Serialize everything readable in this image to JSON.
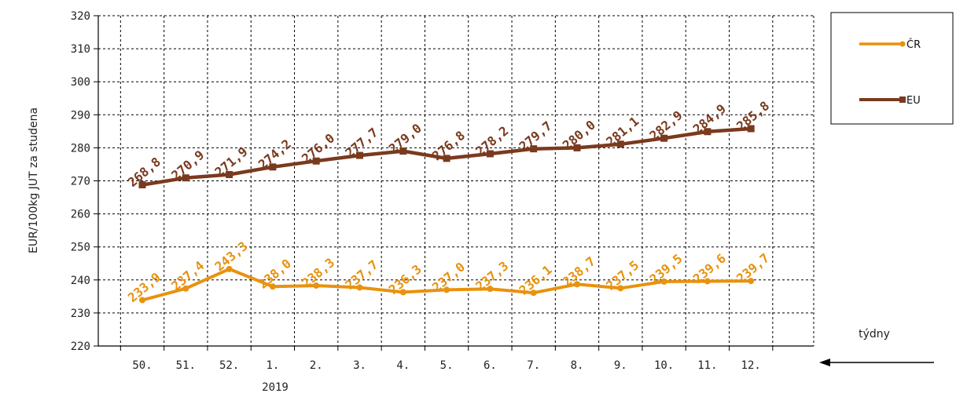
{
  "chart_data": {
    "type": "line",
    "title": "",
    "ylabel": "EUR/100kg  JUT za studena",
    "xlabel": "týdny",
    "year_label": "2019",
    "categories": [
      "50.",
      "51.",
      "52.",
      "1.",
      "2.",
      "3.",
      "4.",
      "5.",
      "6.",
      "7.",
      "8.",
      "9.",
      "10.",
      "11.",
      "12."
    ],
    "ylim": [
      220,
      320
    ],
    "yticks": [
      "220",
      "230",
      "240",
      "250",
      "260",
      "270",
      "280",
      "290",
      "300",
      "310",
      "320"
    ],
    "grid": true,
    "legend_position": "top-right",
    "series": [
      {
        "name": "ČR",
        "color": "#E8920E",
        "marker": "circle",
        "values": [
          233.9,
          237.4,
          243.3,
          238.0,
          238.3,
          237.7,
          236.3,
          237.0,
          237.3,
          236.1,
          238.7,
          237.5,
          239.5,
          239.6,
          239.7
        ],
        "labels": [
          "233,9",
          "237,4",
          "243,3",
          "238,0",
          "238,3",
          "237,7",
          "236,3",
          "237,0",
          "237,3",
          "236,1",
          "238,7",
          "237,5",
          "239,5",
          "239,6",
          "239,7"
        ]
      },
      {
        "name": "EU",
        "color": "#7A3A1E",
        "marker": "square",
        "values": [
          268.8,
          270.9,
          271.9,
          274.2,
          276.0,
          277.7,
          279.0,
          276.8,
          278.2,
          279.7,
          280.0,
          281.1,
          282.9,
          284.9,
          285.8
        ],
        "labels": [
          "268,8",
          "270,9",
          "271,9",
          "274,2",
          "276,0",
          "277,7",
          "279,0",
          "276,8",
          "278,2",
          "279,7",
          "280,0",
          "281,1",
          "282,9",
          "284,9",
          "285,8"
        ]
      }
    ]
  }
}
